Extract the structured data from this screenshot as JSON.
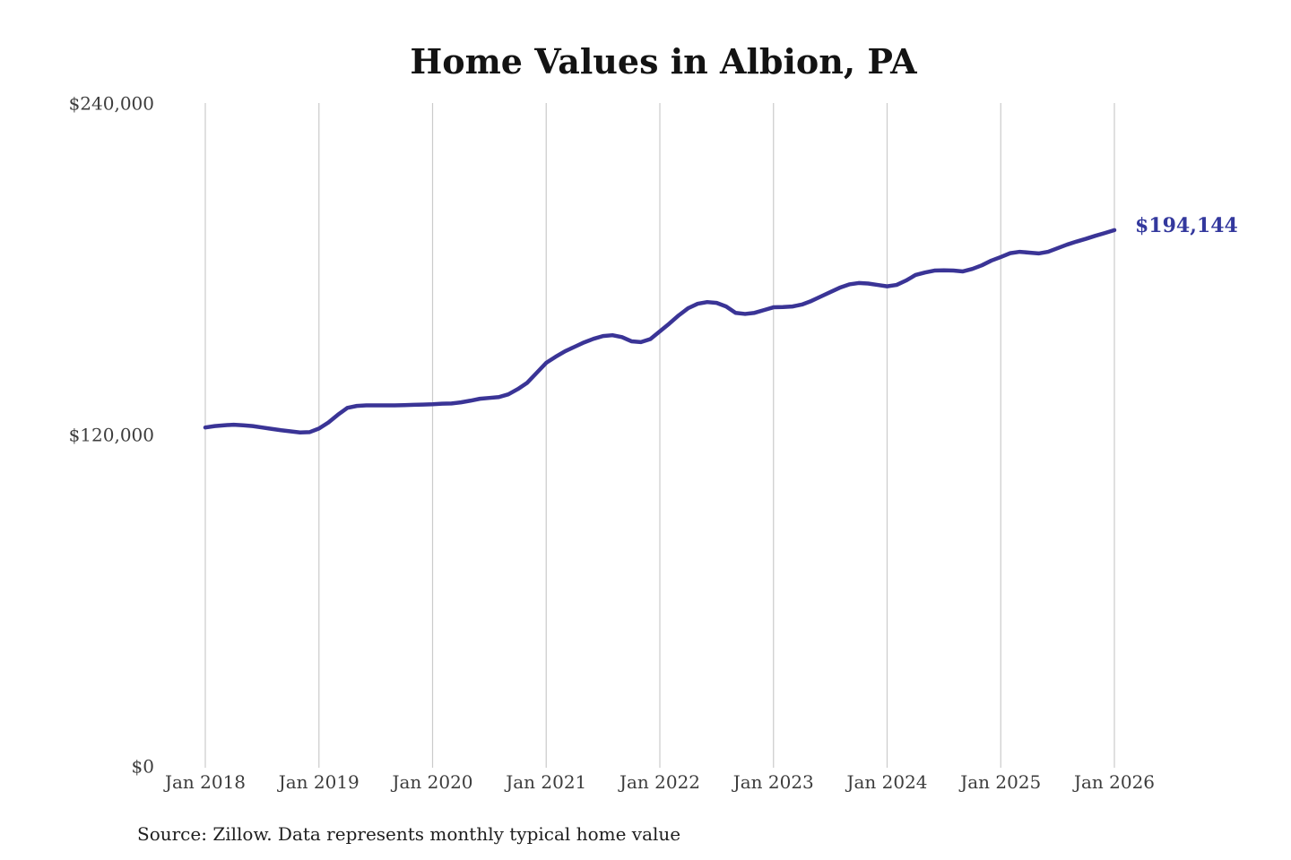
{
  "colors": {
    "line": "#3a3496",
    "annotation": "#33389d",
    "grid": "#cbcbcb",
    "tick_text": "#3d3d3d",
    "title_text": "#131313",
    "source_text": "#1f1f1f",
    "background": "#ffffff"
  },
  "chart_data": {
    "type": "line",
    "title": "Home Values in Albion, PA",
    "source": "Source: Zillow. Data represents monthly typical home value",
    "xlabel": "",
    "ylabel": "",
    "x_tick_labels": [
      "Jan 2018",
      "Jan 2019",
      "Jan 2020",
      "Jan 2021",
      "Jan 2022",
      "Jan 2023",
      "Jan 2024",
      "Jan 2025",
      "Jan 2026"
    ],
    "y_ticks": [
      {
        "label": "$0",
        "value": 0
      },
      {
        "label": "$120,000",
        "value": 120000
      },
      {
        "label": "$240,000",
        "value": 240000
      }
    ],
    "ylim": [
      0,
      240000
    ],
    "grid": "vertical-only",
    "legend": "none",
    "x_start": "2018-01",
    "x_interval": "monthly",
    "end_label": "$194,144",
    "end_value": 194144,
    "series": [
      {
        "name": "Typical home value",
        "values": [
          122700,
          123200,
          123500,
          123700,
          123500,
          123200,
          122700,
          122200,
          121700,
          121300,
          120900,
          121000,
          122300,
          124500,
          127300,
          129800,
          130500,
          130700,
          130700,
          130700,
          130700,
          130800,
          130900,
          131000,
          131100,
          131300,
          131400,
          131800,
          132400,
          133100,
          133400,
          133700,
          134700,
          136600,
          138900,
          142500,
          146100,
          148300,
          150300,
          151900,
          153500,
          154800,
          155800,
          156100,
          155400,
          153900,
          153600,
          154700,
          157500,
          160300,
          163300,
          165900,
          167500,
          168100,
          167800,
          166500,
          164200,
          163800,
          164200,
          165200,
          166200,
          166300,
          166500,
          167200,
          168500,
          170100,
          171700,
          173300,
          174500,
          175000,
          174800,
          174300,
          173800,
          174300,
          175900,
          177900,
          178800,
          179500,
          179600,
          179500,
          179200,
          180100,
          181400,
          183100,
          184400,
          185800,
          186300,
          186000,
          185700,
          186300,
          187600,
          188900,
          190000,
          191000,
          192100,
          193100,
          194144
        ]
      }
    ]
  }
}
